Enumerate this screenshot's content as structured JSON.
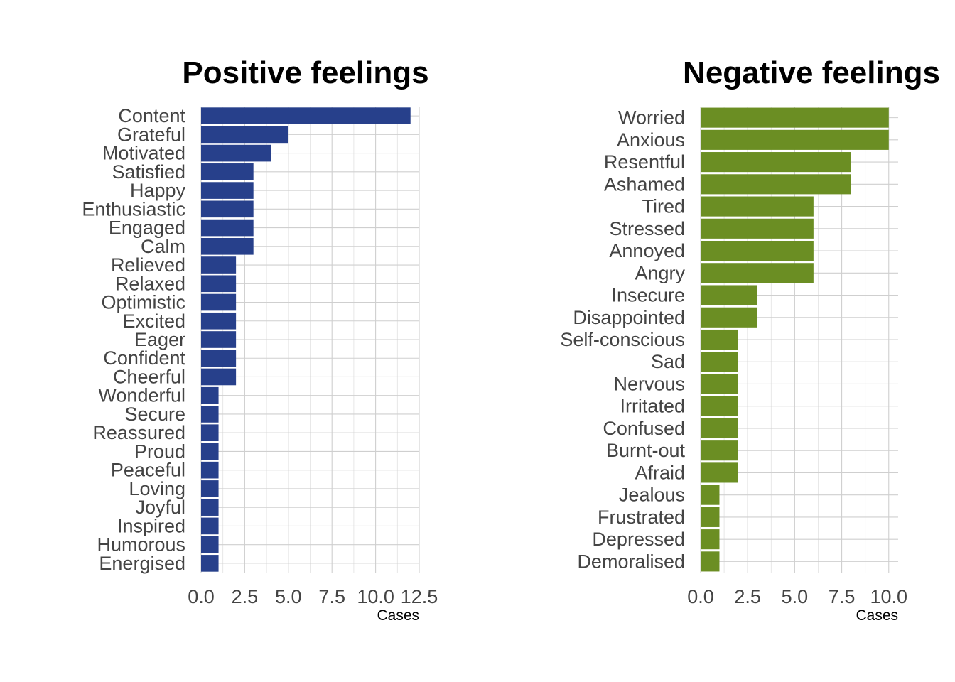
{
  "chart_data": [
    {
      "type": "bar",
      "orientation": "horizontal",
      "title": "Positive feelings",
      "xlabel": "Cases",
      "ylabel": "",
      "xlim": [
        0,
        12.5
      ],
      "x_ticks": [
        "0.0",
        "2.5",
        "5.0",
        "7.5",
        "10.0",
        "12.5"
      ],
      "grid": true,
      "color": "#27408b",
      "categories": [
        "Content",
        "Grateful",
        "Motivated",
        "Satisfied",
        "Happy",
        "Enthusiastic",
        "Engaged",
        "Calm",
        "Relieved",
        "Relaxed",
        "Optimistic",
        "Excited",
        "Eager",
        "Confident",
        "Cheerful",
        "Wonderful",
        "Secure",
        "Reassured",
        "Proud",
        "Peaceful",
        "Loving",
        "Joyful",
        "Inspired",
        "Humorous",
        "Energised"
      ],
      "values": [
        12,
        5,
        4,
        3,
        3,
        3,
        3,
        3,
        2,
        2,
        2,
        2,
        2,
        2,
        2,
        1,
        1,
        1,
        1,
        1,
        1,
        1,
        1,
        1,
        1
      ]
    },
    {
      "type": "bar",
      "orientation": "horizontal",
      "title": "Negative feelings",
      "xlabel": "Cases",
      "ylabel": "",
      "xlim": [
        0,
        10.5
      ],
      "x_ticks": [
        "0.0",
        "2.5",
        "5.0",
        "7.5",
        "10.0"
      ],
      "grid": true,
      "color": "#6b8e23",
      "categories": [
        "Worried",
        "Anxious",
        "Resentful",
        "Ashamed",
        "Tired",
        "Stressed",
        "Annoyed",
        "Angry",
        "Insecure",
        "Disappointed",
        "Self-conscious",
        "Sad",
        "Nervous",
        "Irritated",
        "Confused",
        "Burnt-out",
        "Afraid",
        "Jealous",
        "Frustrated",
        "Depressed",
        "Demoralised"
      ],
      "values": [
        10,
        10,
        8,
        8,
        6,
        6,
        6,
        6,
        3,
        3,
        2,
        2,
        2,
        2,
        2,
        2,
        2,
        1,
        1,
        1,
        1
      ]
    }
  ]
}
